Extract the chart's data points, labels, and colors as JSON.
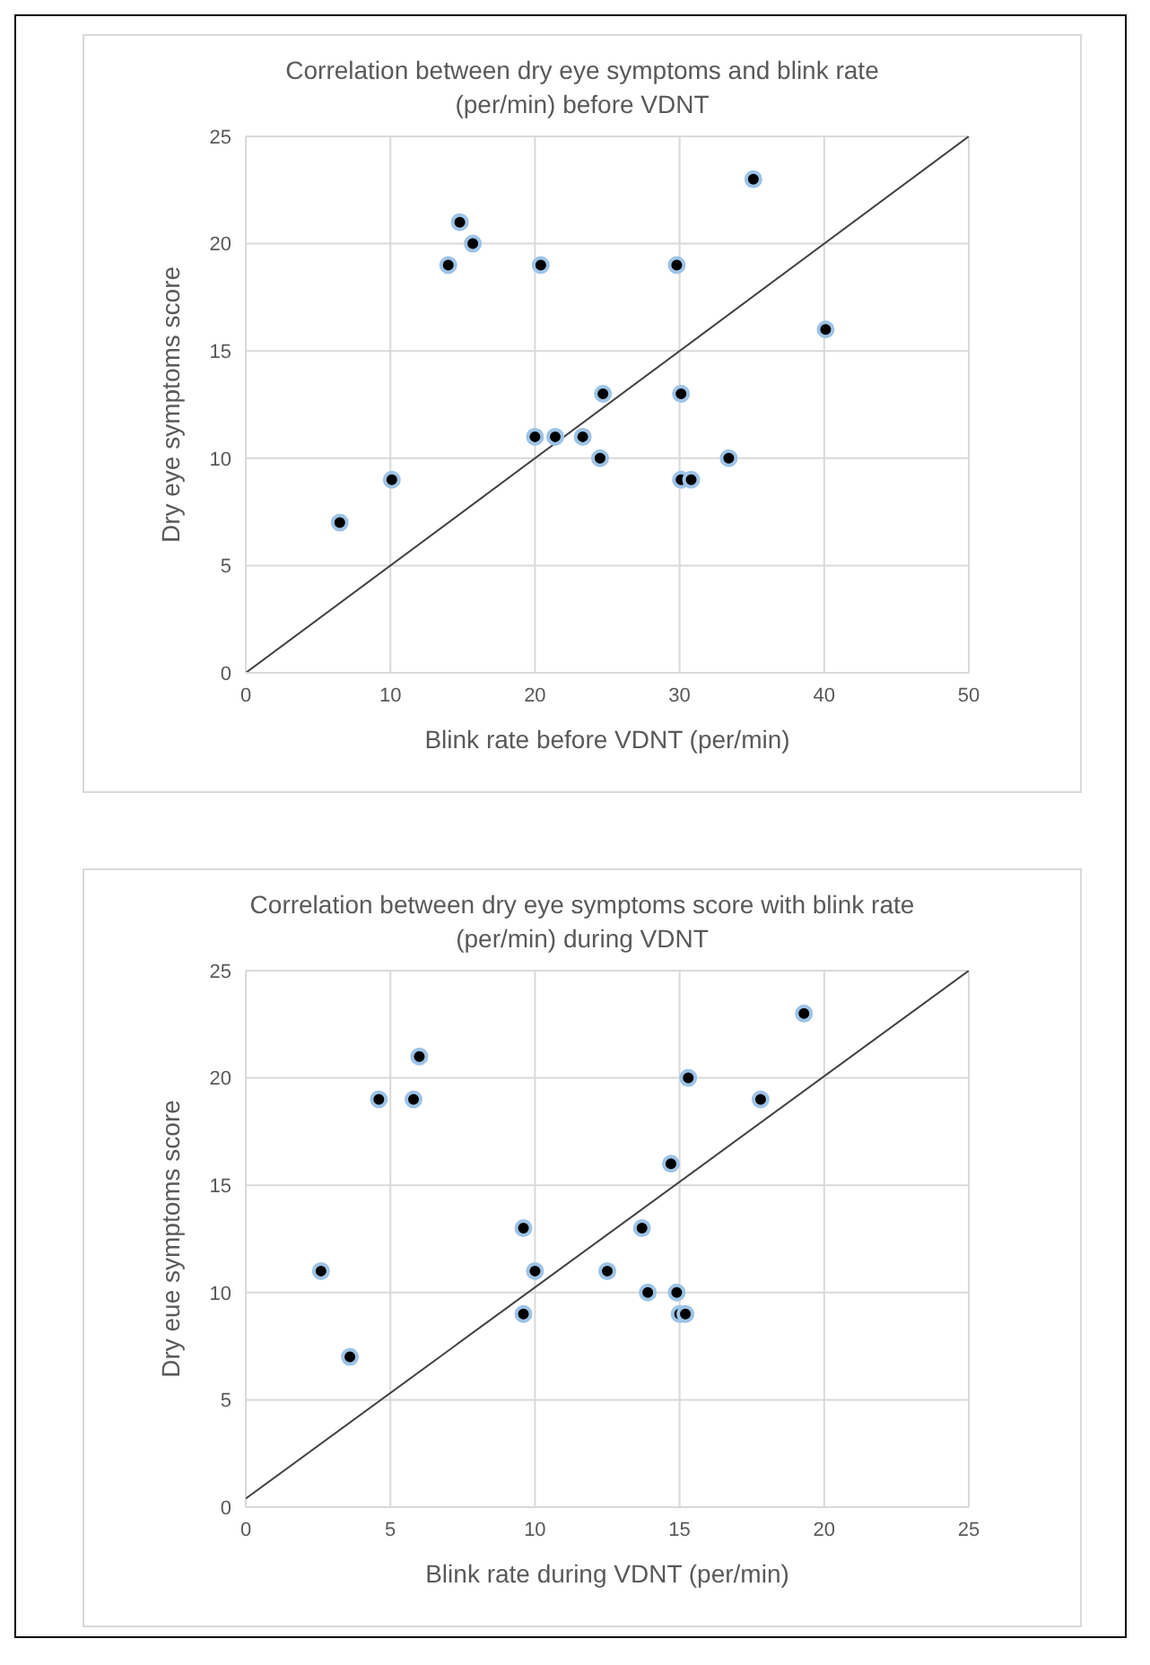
{
  "chart_data": [
    {
      "type": "scatter",
      "title": "Correlation between dry eye symptoms and blink rate (per/min) before VDNT",
      "xlabel": "Blink rate before VDNT (per/min)",
      "ylabel": "Dry eye symptoms score",
      "xlim": [
        0,
        50
      ],
      "ylim": [
        0,
        25
      ],
      "xticks": [
        0,
        10,
        20,
        30,
        40,
        50
      ],
      "yticks": [
        0,
        5,
        10,
        15,
        20,
        25
      ],
      "grid": true,
      "series": [
        {
          "color": "#000000",
          "marker": "circle",
          "x": [
            6.5,
            10.1,
            14.0,
            14.8,
            15.7,
            20.4,
            20.0,
            21.4,
            23.3,
            24.5,
            24.7,
            29.8,
            30.1,
            30.1,
            30.8,
            33.4,
            35.1,
            40.1
          ],
          "values": [
            7,
            9,
            19,
            21,
            20,
            19,
            11,
            11,
            11,
            10,
            13,
            19,
            13,
            9,
            9,
            10,
            23,
            16
          ]
        },
        {
          "type": "line",
          "color": "#404040",
          "marker": "none",
          "x": [
            0,
            50
          ],
          "values": [
            0,
            25
          ]
        }
      ]
    },
    {
      "type": "scatter",
      "title": "Correlation between dry eye symptoms score with blink rate (per/min) during VDNT",
      "xlabel": "Blink rate during VDNT (per/min)",
      "ylabel": "Dry eue symptoms score",
      "xlim": [
        0,
        25
      ],
      "ylim": [
        0,
        25
      ],
      "xticks": [
        0,
        5,
        10,
        15,
        20,
        25
      ],
      "yticks": [
        0,
        5,
        10,
        15,
        20,
        25
      ],
      "grid": true,
      "series": [
        {
          "color": "#000000",
          "marker": "circle",
          "x": [
            2.6,
            3.6,
            4.6,
            5.8,
            6.0,
            9.6,
            10.0,
            9.6,
            12.5,
            13.7,
            13.9,
            14.9,
            14.7,
            15.0,
            15.2,
            15.3,
            17.8,
            19.3
          ],
          "values": [
            11,
            7,
            19,
            19,
            21,
            13,
            11,
            9,
            11,
            13,
            10,
            10,
            16,
            9,
            9,
            20,
            19,
            23
          ]
        },
        {
          "type": "line",
          "color": "#404040",
          "marker": "none",
          "x": [
            0,
            25
          ],
          "values": [
            0.4,
            25
          ]
        }
      ]
    }
  ]
}
